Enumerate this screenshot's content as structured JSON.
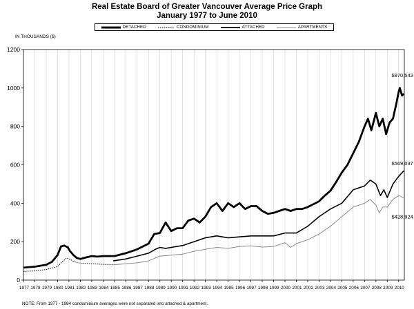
{
  "chart_data": {
    "type": "line",
    "title": "Real Estate Board of Greater Vancouver Average Price Graph",
    "subtitle": "January 1977 to June 2010",
    "ylabel": "IN THOUSANDS ($)",
    "xlabel": "",
    "ylim": [
      0,
      1200
    ],
    "y_ticks": [
      "0",
      "200",
      "400",
      "600",
      "800",
      "1000",
      "1200"
    ],
    "y_tick_values": [
      0,
      200,
      400,
      600,
      800,
      1000,
      1200
    ],
    "x_range": [
      1977,
      2010.5
    ],
    "x_ticks": [
      "1977",
      "1978",
      "1979",
      "1980",
      "1981",
      "1982",
      "1983",
      "1984",
      "1985",
      "1986",
      "1987",
      "1988",
      "1989",
      "1990",
      "1991",
      "1992",
      "1993",
      "1994",
      "1995",
      "1996",
      "1997",
      "1998",
      "1999",
      "2000",
      "2001",
      "2002",
      "2003",
      "2004",
      "2005",
      "2006",
      "2007",
      "2008",
      "2009",
      "2010"
    ],
    "x_tick_values": [
      1977,
      1978,
      1979,
      1980,
      1981,
      1982,
      1983,
      1984,
      1985,
      1986,
      1987,
      1988,
      1989,
      1990,
      1991,
      1992,
      1993,
      1994,
      1995,
      1996,
      1997,
      1998,
      1999,
      2000,
      2001,
      2002,
      2003,
      2004,
      2005,
      2006,
      2007,
      2008,
      2009,
      2010
    ],
    "grid": "vertical",
    "legend_position": "top",
    "legend": [
      {
        "name": "DETACHED",
        "style": "thick"
      },
      {
        "name": "CONDOMINIUM",
        "style": "dotted"
      },
      {
        "name": "ATTACHED",
        "style": "medium"
      },
      {
        "name": "APARTMENTS",
        "style": "thin-gray"
      }
    ],
    "series": [
      {
        "name": "DETACHED",
        "x": [
          1977,
          1978,
          1979,
          1979.5,
          1980,
          1980.3,
          1980.6,
          1980.9,
          1981.1,
          1981.4,
          1981.7,
          1982,
          1982.5,
          1983,
          1983.5,
          1984,
          1985,
          1986,
          1987,
          1988,
          1988.5,
          1989,
          1989.5,
          1990,
          1990.5,
          1991,
          1991.5,
          1992,
          1992.5,
          1993,
          1993.5,
          1994,
          1994.5,
          1995,
          1995.5,
          1996,
          1996.5,
          1997,
          1997.5,
          1998,
          1998.5,
          1999,
          1999.5,
          2000,
          2000.5,
          2001,
          2001.5,
          2002,
          2002.5,
          2003,
          2003.5,
          2004,
          2004.5,
          2005,
          2005.5,
          2006,
          2006.5,
          2007,
          2007.3,
          2007.6,
          2008,
          2008.3,
          2008.6,
          2008.9,
          2009.2,
          2009.5,
          2009.8,
          2010,
          2010.1,
          2010.3,
          2010.45
        ],
        "values": [
          65,
          70,
          80,
          95,
          130,
          175,
          180,
          170,
          150,
          130,
          115,
          110,
          118,
          125,
          122,
          125,
          125,
          140,
          160,
          190,
          240,
          245,
          300,
          255,
          270,
          270,
          310,
          320,
          300,
          330,
          380,
          400,
          360,
          400,
          380,
          400,
          370,
          385,
          385,
          360,
          345,
          350,
          360,
          370,
          360,
          370,
          370,
          380,
          395,
          410,
          440,
          465,
          510,
          560,
          600,
          660,
          720,
          800,
          840,
          780,
          870,
          800,
          840,
          760,
          820,
          840,
          920,
          980,
          1000,
          960,
          970.5
        ]
      },
      {
        "name": "CONDOMINIUM",
        "x": [
          1977,
          1978,
          1979,
          1980,
          1980.4,
          1980.8,
          1981.1,
          1981.5,
          1982,
          1983,
          1984,
          1984.9
        ],
        "values": [
          45,
          48,
          55,
          70,
          95,
          115,
          108,
          95,
          88,
          85,
          82,
          80
        ]
      },
      {
        "name": "ATTACHED",
        "x": [
          1984.9,
          1986,
          1987,
          1988,
          1988.6,
          1989,
          1989.5,
          1990,
          1990.5,
          1991,
          1992,
          1992.5,
          1993,
          1994,
          1995,
          1996,
          1997,
          1998,
          1999,
          2000,
          2001,
          2002,
          2003,
          2004,
          2005,
          2006,
          2007,
          2007.5,
          2008,
          2008.4,
          2008.7,
          2009,
          2009.5,
          2010,
          2010.45
        ],
        "values": [
          100,
          110,
          125,
          140,
          160,
          170,
          165,
          170,
          175,
          180,
          200,
          210,
          220,
          230,
          220,
          225,
          230,
          230,
          230,
          245,
          245,
          280,
          330,
          370,
          400,
          470,
          490,
          520,
          500,
          440,
          470,
          430,
          500,
          540,
          569
        ]
      },
      {
        "name": "APARTMENTS",
        "x": [
          1984.9,
          1986,
          1987,
          1988,
          1988.6,
          1989,
          1990,
          1991,
          1992,
          1993,
          1994,
          1995,
          1996,
          1997,
          1998,
          1999,
          2000,
          2000.5,
          2001,
          2002,
          2003,
          2004,
          2005,
          2006,
          2007,
          2007.5,
          2008,
          2008.3,
          2008.6,
          2009,
          2009.5,
          2010,
          2010.45
        ],
        "values": [
          80,
          85,
          90,
          100,
          115,
          125,
          130,
          135,
          150,
          160,
          170,
          165,
          175,
          178,
          172,
          175,
          195,
          170,
          190,
          210,
          240,
          280,
          330,
          380,
          400,
          420,
          390,
          350,
          380,
          380,
          420,
          440,
          428.9
        ]
      }
    ],
    "annotations": [
      {
        "text": "$970,542",
        "series": "DETACHED"
      },
      {
        "text": "$569,037",
        "series": "ATTACHED"
      },
      {
        "text": "$428,924",
        "series": "APARTMENTS"
      }
    ],
    "footnote": "NOTE:  From 1977 - 1984 condominium averages were not separated into attached & apartment."
  }
}
